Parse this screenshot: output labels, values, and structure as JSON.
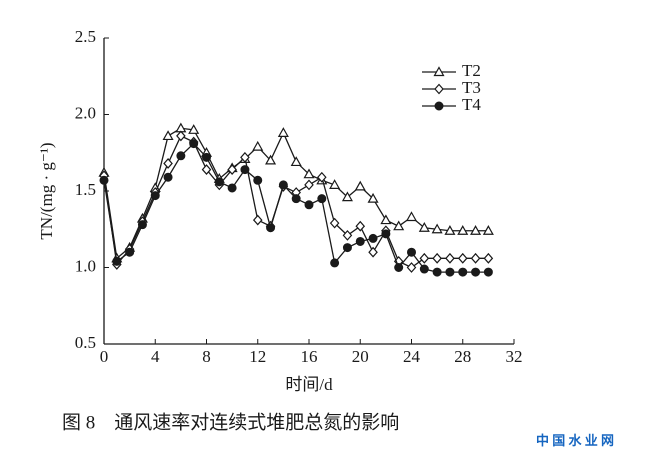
{
  "chart_data": {
    "type": "line",
    "y_label": "TN/(mg · g⁻¹)",
    "x_label": "时间/d",
    "caption": "图 8　通风速率对连续式堆肥总氮的影响",
    "watermark": "中 国 水 业 网",
    "x": [
      0,
      1,
      2,
      3,
      4,
      5,
      6,
      7,
      8,
      9,
      10,
      11,
      12,
      13,
      14,
      15,
      16,
      17,
      18,
      19,
      20,
      21,
      22,
      23,
      24,
      25,
      26,
      27,
      28,
      29,
      30
    ],
    "series": [
      {
        "name": "T2",
        "color": "#1a1a1a",
        "marker": "triangle",
        "values": [
          1.62,
          1.06,
          1.13,
          1.32,
          1.52,
          1.86,
          1.91,
          1.9,
          1.75,
          1.58,
          1.65,
          1.71,
          1.79,
          1.7,
          1.88,
          1.69,
          1.61,
          1.57,
          1.54,
          1.46,
          1.53,
          1.45,
          1.31,
          1.27,
          1.33,
          1.26,
          1.25,
          1.24,
          1.24,
          1.24,
          1.24
        ]
      },
      {
        "name": "T3",
        "color": "#1a1a1a",
        "marker": "diamond",
        "values": [
          1.6,
          1.02,
          1.12,
          1.3,
          1.49,
          1.68,
          1.86,
          1.82,
          1.64,
          1.54,
          1.64,
          1.72,
          1.31,
          1.27,
          1.53,
          1.49,
          1.54,
          1.59,
          1.29,
          1.21,
          1.27,
          1.1,
          1.24,
          1.04,
          1.0,
          1.06,
          1.06,
          1.06,
          1.06,
          1.06,
          1.06
        ]
      },
      {
        "name": "T4",
        "color": "#1a1a1a",
        "marker": "circle",
        "values": [
          1.57,
          1.04,
          1.1,
          1.28,
          1.47,
          1.59,
          1.73,
          1.81,
          1.72,
          1.56,
          1.52,
          1.64,
          1.57,
          1.26,
          1.54,
          1.45,
          1.41,
          1.45,
          1.03,
          1.13,
          1.17,
          1.19,
          1.22,
          1.0,
          1.1,
          0.99,
          0.97,
          0.97,
          0.97,
          0.97,
          0.97
        ]
      }
    ],
    "xlim": [
      0,
      32
    ],
    "xticks": [
      0,
      4,
      8,
      12,
      16,
      20,
      24,
      28,
      32
    ],
    "ylim": [
      0.5,
      2.5
    ],
    "yticks": [
      0.5,
      {
        "value": 1,
        "label": "1.0"
      },
      1.5,
      {
        "value": 2,
        "label": "2.0"
      },
      2.5
    ],
    "legend": "upper right"
  }
}
